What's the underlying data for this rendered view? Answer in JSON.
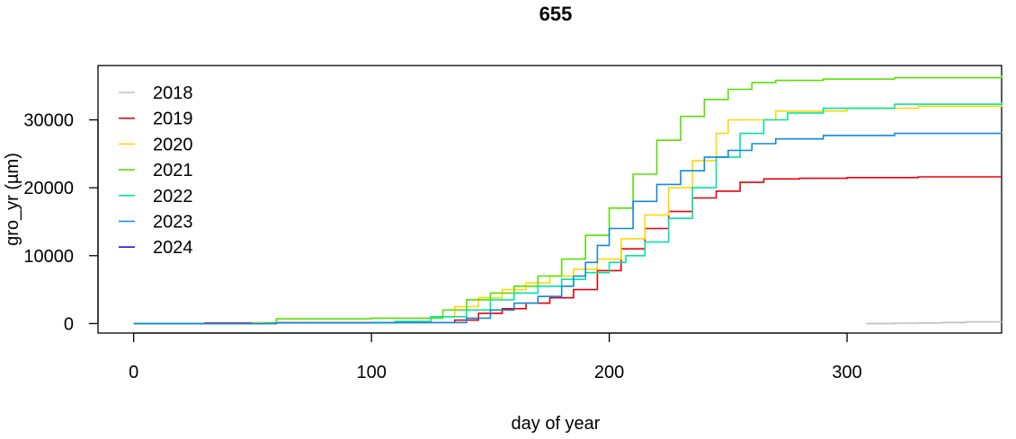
{
  "chart_data": {
    "type": "line",
    "title": "655",
    "xlabel": "day of year",
    "ylabel": "gro_yr (µm)",
    "xlim": [
      -15,
      365
    ],
    "ylim": [
      -1400,
      38000
    ],
    "xticks": [
      0,
      100,
      200,
      300
    ],
    "yticks": [
      0,
      10000,
      20000,
      30000
    ],
    "grid": false,
    "legend_position": "top-left",
    "series": [
      {
        "name": "2018",
        "color": "#BEBEBE",
        "x": [
          308,
          320,
          330,
          340,
          350,
          365
        ],
        "y": [
          0,
          50,
          100,
          150,
          250,
          300
        ]
      },
      {
        "name": "2019",
        "color": "#E8000B",
        "x": [
          0,
          30,
          60,
          100,
          130,
          135,
          145,
          155,
          165,
          175,
          185,
          195,
          205,
          215,
          225,
          235,
          245,
          255,
          265,
          280,
          300,
          330,
          365
        ],
        "y": [
          0,
          100,
          150,
          150,
          150,
          500,
          1500,
          2200,
          3000,
          3800,
          5000,
          7800,
          11000,
          14000,
          16500,
          18500,
          19500,
          20800,
          21300,
          21400,
          21500,
          21600,
          21700
        ]
      },
      {
        "name": "2020",
        "color": "#FFD700",
        "x": [
          0,
          50,
          100,
          115,
          125,
          135,
          145,
          155,
          165,
          175,
          185,
          195,
          205,
          215,
          225,
          235,
          245,
          250,
          270,
          300,
          330,
          365
        ],
        "y": [
          0,
          100,
          150,
          150,
          1000,
          2500,
          3800,
          5000,
          6000,
          7000,
          8000,
          9500,
          12500,
          16000,
          20000,
          24000,
          28000,
          30000,
          31300,
          31700,
          32000,
          32200
        ]
      },
      {
        "name": "2021",
        "color": "#56E000",
        "x": [
          0,
          55,
          60,
          100,
          120,
          130,
          140,
          150,
          160,
          170,
          180,
          190,
          200,
          210,
          220,
          230,
          240,
          250,
          260,
          270,
          290,
          320,
          365
        ],
        "y": [
          0,
          100,
          700,
          800,
          800,
          2000,
          3500,
          4500,
          5500,
          7000,
          9500,
          13000,
          17000,
          22000,
          27000,
          30500,
          33000,
          34500,
          35500,
          35800,
          36000,
          36200,
          36500
        ]
      },
      {
        "name": "2022",
        "color": "#00E5A0",
        "x": [
          0,
          60,
          110,
          125,
          140,
          150,
          160,
          170,
          180,
          190,
          200,
          207,
          215,
          225,
          235,
          245,
          255,
          265,
          275,
          290,
          320,
          365
        ],
        "y": [
          0,
          100,
          300,
          1000,
          2000,
          3500,
          4500,
          5500,
          6500,
          7500,
          9000,
          10000,
          12000,
          15500,
          20000,
          24500,
          28000,
          30000,
          31000,
          31700,
          32300,
          32600
        ]
      },
      {
        "name": "2023",
        "color": "#1088E0",
        "x": [
          0,
          60,
          100,
          133,
          140,
          150,
          160,
          170,
          180,
          185,
          190,
          195,
          200,
          210,
          220,
          230,
          240,
          250,
          260,
          270,
          290,
          320,
          365
        ],
        "y": [
          0,
          100,
          150,
          150,
          800,
          2000,
          3000,
          4000,
          5500,
          7000,
          9000,
          11500,
          14000,
          18000,
          20500,
          22500,
          24500,
          25500,
          26500,
          27200,
          27700,
          28000,
          28200
        ]
      },
      {
        "name": "2024",
        "color": "#3A0AE0",
        "x": [],
        "y": []
      }
    ]
  }
}
